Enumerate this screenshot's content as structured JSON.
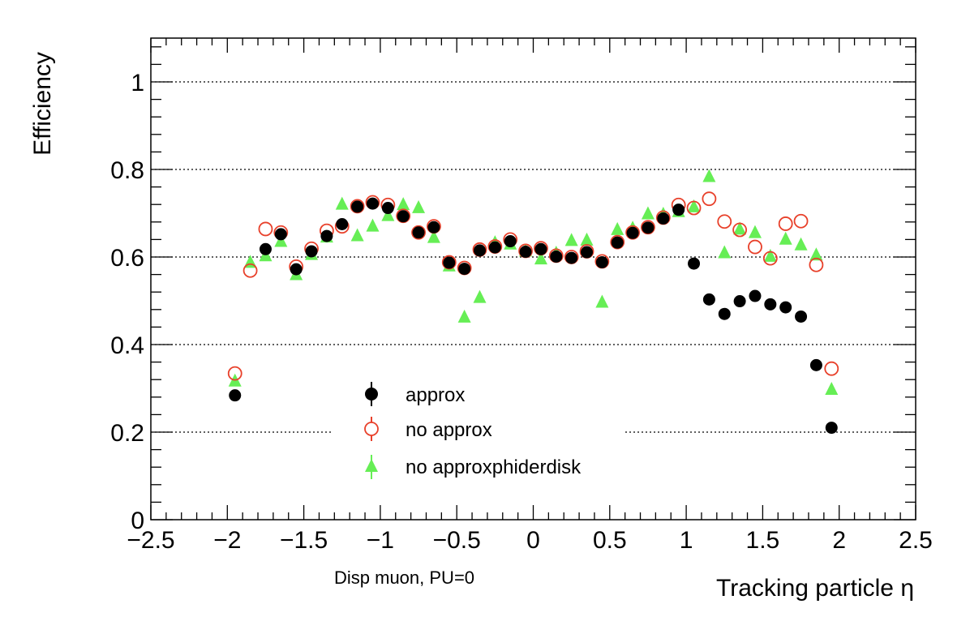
{
  "chart_data": {
    "type": "scatter",
    "xlabel": "Tracking particle η",
    "ylabel": "Efficiency",
    "annotation": "Disp muon, PU=0",
    "xlim": [
      -2.5,
      2.5
    ],
    "ylim": [
      0,
      1.1
    ],
    "x_ticks": [
      -2.5,
      -2,
      -1.5,
      -1,
      -0.5,
      0,
      0.5,
      1,
      1.5,
      2,
      2.5
    ],
    "x_tick_labels": [
      "−2.5",
      "−2",
      "−1.5",
      "−1",
      "−0.5",
      "0",
      "0.5",
      "1",
      "1.5",
      "2",
      "2.5"
    ],
    "y_ticks": [
      0,
      0.2,
      0.4,
      0.6,
      0.8,
      1
    ],
    "y_tick_labels": [
      "0",
      "0.2",
      "0.4",
      "0.6",
      "0.8",
      "1"
    ],
    "grid": "horizontal dotted at major y ticks",
    "legend_position": "lower-center",
    "x": [
      -1.95,
      -1.85,
      -1.75,
      -1.65,
      -1.55,
      -1.45,
      -1.35,
      -1.25,
      -1.15,
      -1.05,
      -0.95,
      -0.85,
      -0.75,
      -0.65,
      -0.55,
      -0.45,
      -0.35,
      -0.25,
      -0.15,
      -0.05,
      0.05,
      0.15,
      0.25,
      0.35,
      0.45,
      0.55,
      0.65,
      0.75,
      0.85,
      0.95,
      1.05,
      1.15,
      1.25,
      1.35,
      1.45,
      1.55,
      1.65,
      1.75,
      1.85,
      1.95
    ],
    "series": [
      {
        "name": "approx",
        "marker": "filled-circle",
        "color": "#000000",
        "values": [
          0.284,
          null,
          0.618,
          0.652,
          0.572,
          0.613,
          0.648,
          0.675,
          0.715,
          0.722,
          0.712,
          0.693,
          0.656,
          0.668,
          0.587,
          0.573,
          0.615,
          0.622,
          0.636,
          0.612,
          0.618,
          0.601,
          0.598,
          0.611,
          0.588,
          0.633,
          0.655,
          0.667,
          0.688,
          0.708,
          0.585,
          0.503,
          0.47,
          0.499,
          0.511,
          0.492,
          0.485,
          0.464,
          0.353,
          0.21
        ]
      },
      {
        "name": "no approx",
        "marker": "open-circle",
        "color": "#e8402a",
        "values": [
          0.334,
          0.569,
          0.664,
          0.656,
          0.578,
          0.619,
          0.66,
          0.67,
          0.716,
          0.725,
          0.719,
          0.694,
          0.656,
          0.67,
          0.588,
          0.575,
          0.617,
          0.624,
          0.64,
          0.614,
          0.62,
          0.603,
          0.6,
          0.613,
          0.59,
          0.634,
          0.656,
          0.668,
          0.69,
          0.719,
          0.712,
          0.733,
          0.681,
          0.662,
          0.623,
          0.597,
          0.676,
          0.682,
          0.582,
          0.345
        ]
      },
      {
        "name": "no approxphiderdisk",
        "marker": "filled-triangle",
        "color": "#66ee55",
        "values": [
          0.319,
          0.59,
          0.605,
          0.638,
          0.562,
          0.608,
          0.648,
          0.723,
          0.651,
          0.673,
          0.697,
          0.722,
          0.715,
          0.647,
          0.582,
          0.465,
          0.51,
          0.635,
          0.632,
          0.616,
          0.598,
          0.611,
          0.64,
          0.641,
          0.499,
          0.665,
          0.668,
          0.701,
          0.7,
          0.706,
          0.717,
          0.786,
          0.612,
          0.666,
          0.658,
          0.604,
          0.643,
          0.63,
          0.607,
          0.3
        ]
      }
    ]
  }
}
